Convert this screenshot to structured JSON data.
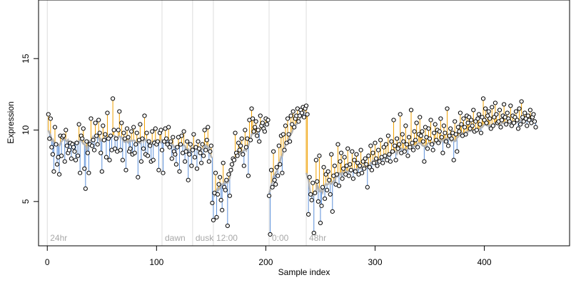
{
  "chart_data": {
    "type": "scatter",
    "title": "",
    "xlabel": "Sample index",
    "ylabel": "Expression",
    "xlim": [
      -8,
      478
    ],
    "ylim": [
      1.9,
      19.1
    ],
    "x_ticks": [
      0,
      100,
      200,
      300,
      400
    ],
    "y_ticks": [
      5,
      10,
      15
    ],
    "grid": false,
    "events": [
      {
        "label": "24hr",
        "x": 0
      },
      {
        "label": "dawn",
        "x": 105
      },
      {
        "label": "dusk",
        "x": 133
      },
      {
        "label": "12:00",
        "x": 152
      },
      {
        "label": "0:00",
        "x": 203
      },
      {
        "label": "48hr",
        "x": 237
      }
    ],
    "colors": {
      "above_trend": "#f0a000",
      "below_trend": "#5b8fd9",
      "trend": "#b3b3b3",
      "event_line": "#dcdcdc",
      "event_text": "#a8a8a8"
    },
    "series": [
      {
        "x_start": 1,
        "trend_segments": [
          {
            "from": 1,
            "to": 105,
            "start": 9.6,
            "end": 9.3
          },
          {
            "from": 106,
            "to": 151,
            "start": 9.3,
            "end": 8.6
          },
          {
            "from": 152,
            "to": 202,
            "start": 5.6,
            "end": 10.6
          },
          {
            "from": 203,
            "to": 236,
            "start": 6.0,
            "end": 11.3
          },
          {
            "from": 237,
            "to": 300,
            "start": 5.4,
            "end": 7.6
          },
          {
            "from": 301,
            "to": 464,
            "start": 7.6,
            "end": 11.1
          }
        ],
        "values": [
          11.1,
          9.4,
          10.8,
          8.8,
          8.3,
          7.1,
          10.2,
          9.0,
          7.6,
          8.1,
          6.9,
          9.6,
          8.2,
          9.5,
          9.6,
          7.8,
          10.0,
          8.9,
          8.4,
          8.6,
          9.1,
          8.0,
          9.0,
          8.8,
          8.5,
          7.9,
          9.1,
          8.2,
          10.4,
          7.0,
          9.6,
          9.4,
          10.1,
          7.3,
          5.9,
          9.2,
          8.4,
          7.0,
          9.0,
          10.8,
          8.9,
          9.3,
          8.6,
          10.5,
          9.6,
          9.0,
          10.7,
          9.8,
          8.4,
          7.1,
          10.3,
          9.3,
          9.7,
          8.1,
          11.2,
          9.4,
          7.9,
          9.6,
          8.6,
          12.2,
          10.0,
          8.7,
          9.4,
          8.5,
          10.0,
          11.3,
          8.6,
          10.5,
          7.9,
          9.8,
          9.4,
          7.2,
          10.1,
          9.5,
          8.5,
          8.7,
          9.9,
          8.3,
          10.2,
          8.4,
          9.0,
          9.8,
          6.7,
          9.3,
          10.4,
          7.8,
          9.4,
          8.7,
          11.0,
          8.3,
          9.8,
          8.2,
          9.2,
          8.9,
          7.8,
          9.9,
          7.9,
          9.1,
          10.1,
          9.0,
          9.2,
          7.2,
          9.8,
          10.0,
          8.6,
          7.0,
          9.2,
          10.1,
          9.4,
          9.0,
          10.2,
          8.8,
          9.2,
          8.0,
          9.5,
          8.5,
          8.3,
          7.6,
          8.8,
          9.5,
          7.1,
          9.0,
          9.6,
          8.4,
          9.9,
          7.8,
          8.5,
          9.2,
          6.5,
          8.3,
          9.0,
          7.5,
          8.6,
          9.7,
          8.1,
          8.8,
          7.3,
          9.2,
          8.7,
          8.4,
          7.7,
          9.0,
          8.2,
          10.0,
          8.6,
          9.3,
          10.2,
          7.8,
          8.5,
          8.9,
          4.9,
          3.7,
          5.6,
          7.0,
          3.9,
          5.5,
          6.2,
          6.7,
          5.1,
          4.4,
          7.7,
          6.0,
          5.8,
          6.5,
          3.3,
          6.9,
          5.4,
          7.2,
          7.6,
          8.0,
          7.9,
          9.8,
          8.4,
          8.2,
          9.1,
          8.6,
          8.9,
          9.4,
          8.3,
          7.5,
          10.0,
          8.8,
          9.4,
          6.8,
          10.7,
          9.3,
          11.5,
          10.8,
          9.9,
          10.2,
          10.6,
          9.6,
          10.0,
          9.2,
          11.0,
          10.3,
          10.5,
          10.1,
          9.9,
          10.8,
          10.4,
          10.7,
          5.4,
          2.7,
          7.2,
          6.0,
          8.5,
          6.5,
          6.2,
          7.4,
          6.8,
          8.9,
          7.6,
          9.6,
          7.0,
          9.7,
          8.6,
          10.3,
          9.1,
          10.8,
          9.7,
          9.2,
          11.0,
          10.4,
          11.3,
          10.2,
          10.8,
          11.0,
          11.5,
          10.6,
          11.0,
          11.4,
          11.2,
          11.6,
          10.9,
          11.5,
          11.7,
          11.1,
          4.1,
          6.7,
          5.5,
          5.1,
          6.3,
          2.8,
          5.6,
          7.9,
          6.4,
          5.0,
          8.2,
          3.5,
          4.7,
          6.0,
          7.4,
          5.2,
          6.9,
          5.8,
          7.1,
          6.5,
          5.5,
          8.3,
          4.3,
          6.8,
          7.5,
          6.2,
          6.9,
          9.0,
          6.1,
          7.8,
          8.4,
          6.6,
          7.3,
          8.1,
          6.9,
          7.5,
          8.7,
          6.8,
          7.6,
          7.2,
          8.5,
          6.6,
          7.9,
          7.1,
          8.3,
          7.7,
          6.9,
          7.5,
          8.6,
          7.0,
          7.8,
          7.3,
          8.0,
          7.6,
          6.0,
          8.2,
          7.4,
          8.9,
          7.2,
          8.4,
          7.7,
          9.1,
          8.0,
          7.5,
          8.6,
          7.8,
          9.3,
          8.1,
          7.7,
          8.8,
          8.2,
          9.0,
          7.9,
          9.6,
          8.3,
          7.8,
          9.2,
          8.5,
          10.7,
          8.9,
          7.9,
          9.4,
          8.7,
          9.0,
          11.1,
          8.4,
          9.7,
          9.2,
          8.5,
          10.3,
          9.0,
          8.2,
          9.5,
          8.8,
          11.4,
          9.1,
          8.6,
          9.9,
          9.3,
          10.5,
          8.8,
          9.7,
          10.9,
          9.6,
          9.9,
          9.2,
          7.8,
          10.2,
          9.5,
          8.7,
          10.1,
          9.4,
          10.7,
          9.0,
          8.6,
          9.8,
          10.4,
          9.3,
          10.0,
          9.1,
          9.9,
          10.8,
          9.5,
          8.4,
          10.3,
          9.8,
          9.2,
          11.5,
          8.9,
          9.6,
          10.1,
          9.4,
          9.8,
          7.9,
          10.6,
          9.7,
          8.5,
          10.2,
          9.9,
          11.2,
          10.4,
          9.6,
          10.8,
          10.2,
          9.7,
          11.0,
          10.5,
          10.9,
          10.1,
          10.7,
          10.3,
          11.4,
          9.9,
          10.6,
          10.0,
          10.8,
          11.1,
          10.4,
          9.8,
          10.9,
          12.2,
          10.7,
          11.5,
          10.5,
          11.0,
          11.3,
          10.8,
          10.1,
          11.6,
          10.3,
          10.9,
          11.9,
          11.1,
          10.5,
          10.6,
          11.4,
          10.2,
          10.7,
          11.0,
          11.8,
          10.9,
          10.4,
          11.2,
          10.8,
          10.6,
          11.7,
          10.3,
          11.0,
          10.5,
          10.9,
          11.3,
          10.7,
          10.1,
          11.5,
          10.4,
          12.0,
          10.9,
          10.6,
          11.2,
          10.8,
          10.3,
          11.0,
          10.7,
          11.4,
          10.5,
          10.9,
          11.1,
          10.6,
          10.2
        ]
      }
    ]
  }
}
